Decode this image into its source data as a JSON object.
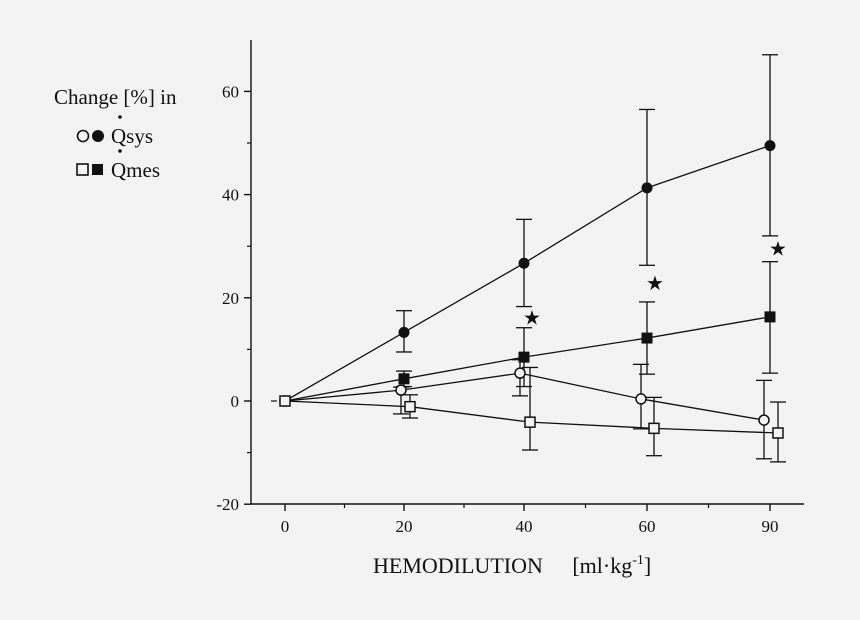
{
  "chart_data": {
    "type": "line",
    "title": "",
    "xlabel": "HEMODILUTION",
    "xlabel_unit_base": "[ml·kg",
    "xlabel_unit_sup": "-1",
    "xlabel_unit_close": "]",
    "ylabel": "",
    "categories": [
      "0",
      "20",
      "40",
      "60",
      "90"
    ],
    "yticks": [
      "-20",
      "0",
      "20",
      "40",
      "60"
    ],
    "ylim": [
      -20,
      70
    ],
    "grid": false,
    "legend": {
      "title": "Change [%] in",
      "placement": "top-left",
      "entries": [
        {
          "label": "Qsys",
          "markers": [
            "open-circle",
            "filled-circle"
          ]
        },
        {
          "label": "Qmes",
          "markers": [
            "open-square",
            "filled-square"
          ]
        }
      ]
    },
    "series": [
      {
        "marker": "filled-circle",
        "values": [
          0,
          13.3,
          26.7,
          41.3,
          49.5
        ],
        "err_upper": [
          0,
          17.5,
          35.2,
          56.5,
          67.1
        ],
        "err_lower": [
          0,
          9.5,
          18.3,
          26.3,
          32.0
        ]
      },
      {
        "marker": "filled-square",
        "values": [
          0,
          4.3,
          8.5,
          12.2,
          16.3
        ],
        "err_upper": [
          0,
          5.8,
          14.2,
          19.2,
          27.0
        ],
        "err_lower": [
          0,
          2.8,
          2.8,
          5.2,
          5.4
        ]
      },
      {
        "marker": "open-circle",
        "values": [
          0,
          2.1,
          5.4,
          0.4,
          -3.7
        ],
        "err_upper": [
          0,
          2.7,
          8.0,
          7.1,
          4.0
        ],
        "err_lower": [
          0,
          -2.5,
          1.0,
          -5.4,
          -11.2
        ]
      },
      {
        "marker": "open-square",
        "values": [
          0,
          -1.1,
          -4.1,
          -5.3,
          -6.2
        ],
        "err_upper": [
          0,
          1.2,
          6.5,
          0.7,
          -0.2
        ],
        "err_lower": [
          0,
          -3.3,
          -9.5,
          -10.6,
          -11.8
        ]
      }
    ],
    "annotations": [
      {
        "text": "★",
        "category_index": 2,
        "y": 16.2
      },
      {
        "text": "★",
        "category_index": 3,
        "y": 22.9
      },
      {
        "text": "★",
        "category_index": 4,
        "y": 29.6
      }
    ]
  }
}
